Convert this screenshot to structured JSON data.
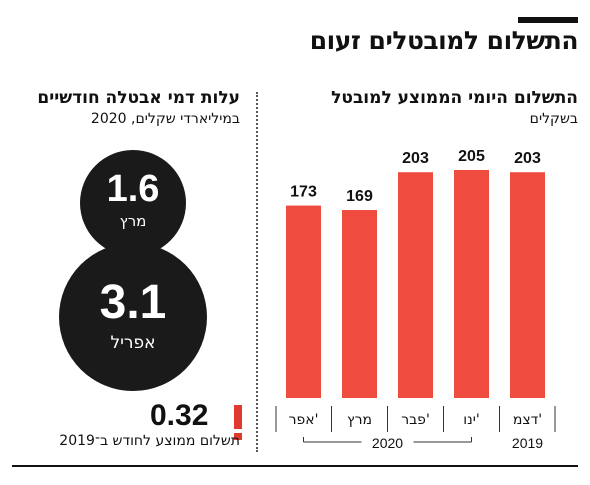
{
  "header": {
    "title": "התשלום למובטלים זעום"
  },
  "right_panel": {
    "title": "התשלום היומי הממוצע למובטל",
    "subtitle": "בשקלים"
  },
  "left_panel": {
    "title": "עלות דמי אבטלה חודשיים",
    "subtitle": "במיליארדי שקלים, 2020",
    "bubbles": [
      {
        "value": "1.6",
        "label": "מרץ"
      },
      {
        "value": "3.1",
        "label": "אפריל"
      }
    ],
    "average": {
      "value": "0.32",
      "mark": "!",
      "label": "תשלום ממוצע לחודש ב־2019"
    }
  },
  "colors": {
    "bar": "#ef4b3f",
    "bubble": "#1a1a1a",
    "exclamation": "#e03a2f",
    "text": "#111111"
  },
  "chart_data": {
    "type": "bar",
    "categories": [
      "דצמ'",
      "ינו'",
      "פבר'",
      "מרץ",
      "אפר'"
    ],
    "values": [
      203,
      205,
      203,
      169,
      173
    ],
    "year_groups": [
      {
        "label": "2019",
        "categories": [
          "דצמ'"
        ]
      },
      {
        "label": "2020",
        "categories": [
          "ינו'",
          "פבר'",
          "מרץ",
          "אפר'"
        ]
      }
    ],
    "ylim": [
      0,
      205
    ],
    "grid": false,
    "legend": "none"
  }
}
